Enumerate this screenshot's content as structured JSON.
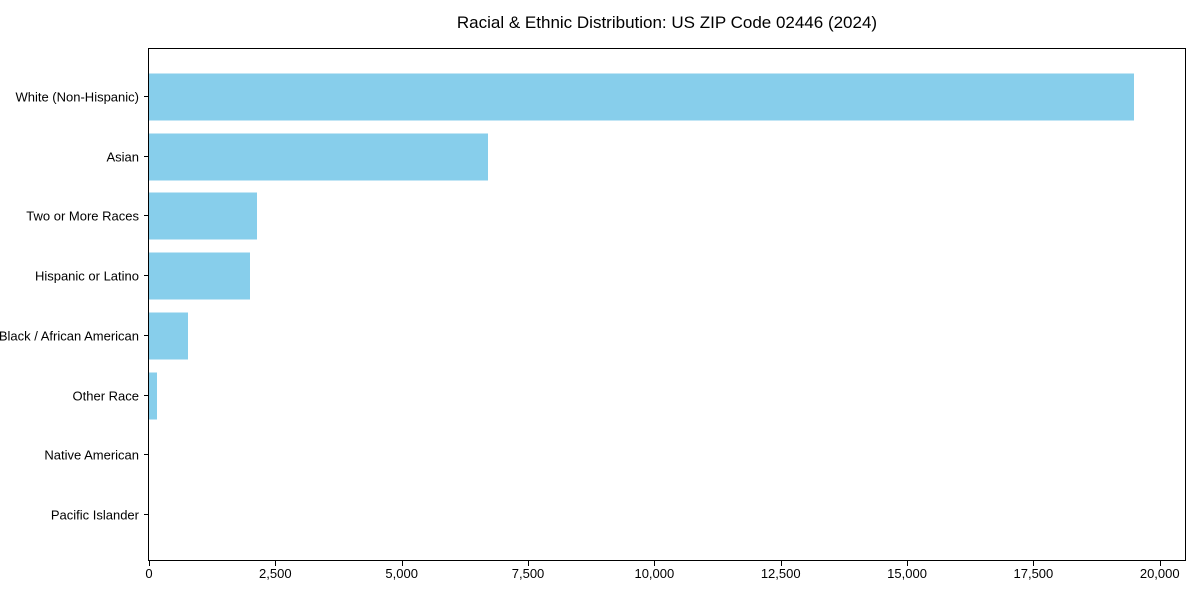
{
  "chart_data": {
    "type": "bar",
    "orientation": "horizontal",
    "title": "Racial & Ethnic Distribution: US ZIP Code 02446 (2024)",
    "categories": [
      "White (Non-Hispanic)",
      "Asian",
      "Two or More Races",
      "Hispanic or Latino",
      "Black / African American",
      "Other Race",
      "Native American",
      "Pacific Islander"
    ],
    "values": [
      19500,
      6700,
      2140,
      2000,
      780,
      150,
      0,
      0
    ],
    "bar_color": "#87CEEB",
    "xlabel": "",
    "ylabel": "",
    "xlim": [
      0,
      20500
    ],
    "xticks": [
      0,
      2500,
      5000,
      7500,
      10000,
      12500,
      15000,
      17500,
      20000
    ],
    "xtick_labels": [
      "0",
      "2,500",
      "5,000",
      "7,500",
      "10,000",
      "12,500",
      "15,000",
      "17,500",
      "20,000"
    ],
    "grid": "off",
    "legend": "none",
    "background_color": "#ffffff",
    "spine_color": "#000000"
  }
}
